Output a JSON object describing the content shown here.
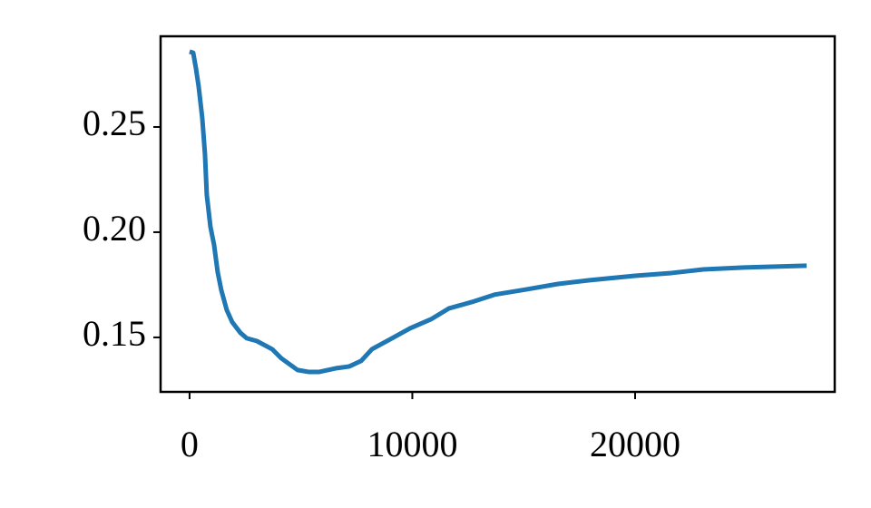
{
  "chart_data": {
    "type": "line",
    "x": [
      0,
      163,
      285,
      407,
      570,
      692,
      774,
      937,
      1100,
      1263,
      1426,
      1670,
      1914,
      2281,
      2566,
      3014,
      3707,
      4114,
      4847,
      5336,
      5825,
      6558,
      7169,
      7699,
      8187,
      9002,
      9898,
      10835,
      11650,
      12668,
      13686,
      15112,
      16538,
      17963,
      20000,
      21629,
      23055,
      24888,
      27699
    ],
    "series": [
      {
        "color": "#1f77b4",
        "values": [
          0.2858,
          0.2853,
          0.278,
          0.2694,
          0.2543,
          0.2371,
          0.2177,
          0.2026,
          0.194,
          0.181,
          0.1724,
          0.163,
          0.1573,
          0.1522,
          0.1496,
          0.1483,
          0.1444,
          0.1401,
          0.1345,
          0.1336,
          0.1336,
          0.1353,
          0.1362,
          0.1388,
          0.1444,
          0.1491,
          0.1543,
          0.1586,
          0.1638,
          0.1668,
          0.1703,
          0.1728,
          0.1754,
          0.1772,
          0.1793,
          0.1806,
          0.1823,
          0.1832,
          0.1841
        ]
      }
    ],
    "xlim": [
      -1300,
      28960
    ],
    "xticks": [
      0,
      10000,
      20000
    ],
    "ylim": [
      0.1241,
      0.2931
    ],
    "yticks": [
      0.15,
      {
        "value": 0.2,
        "label": "0.20"
      },
      0.25
    ],
    "grid": false
  }
}
